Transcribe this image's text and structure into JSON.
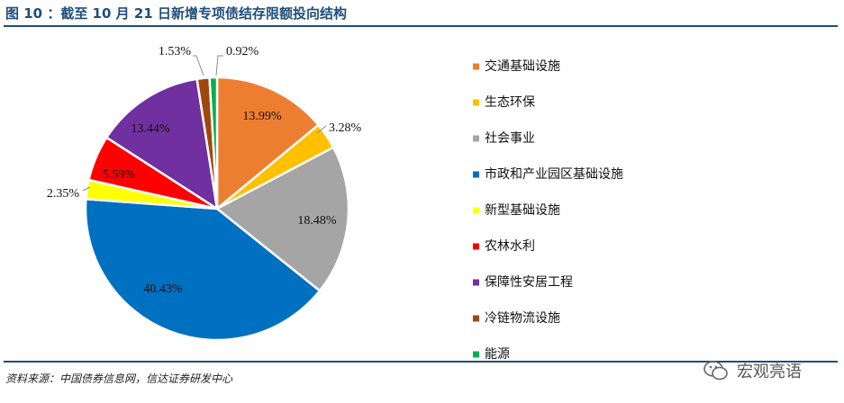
{
  "figure": {
    "title": "图 10 ：截至 10 月 21 日新增专项债结存限额投向结构",
    "source": "资料来源：中国债券信息网，信达证券研发中心",
    "watermark": "宏观亮语"
  },
  "chart_data": {
    "type": "pie",
    "title": "",
    "legend_position": "right",
    "slices": [
      {
        "name": "交通基础设施",
        "value": 13.99,
        "label": "13.99%",
        "color": "#ED7D31"
      },
      {
        "name": "生态环保",
        "value": 3.28,
        "label": "3.28%",
        "color": "#FFC000"
      },
      {
        "name": "社会事业",
        "value": 18.48,
        "label": "18.48%",
        "color": "#A5A5A5"
      },
      {
        "name": "市政和产业园区基础设施",
        "value": 40.43,
        "label": "40.43%",
        "color": "#0070C0"
      },
      {
        "name": "新型基础设施",
        "value": 2.35,
        "label": "2.35%",
        "color": "#FFFF00"
      },
      {
        "name": "农林水利",
        "value": 5.59,
        "label": "5.59%",
        "color": "#FF0000"
      },
      {
        "name": "保障性安居工程",
        "value": 13.44,
        "label": "13.44%",
        "color": "#7030A0"
      },
      {
        "name": "冷链物流设施",
        "value": 1.53,
        "label": "1.53%",
        "color": "#9E480E"
      },
      {
        "name": "能源",
        "value": 0.92,
        "label": "0.92%",
        "color": "#00B050"
      }
    ]
  }
}
